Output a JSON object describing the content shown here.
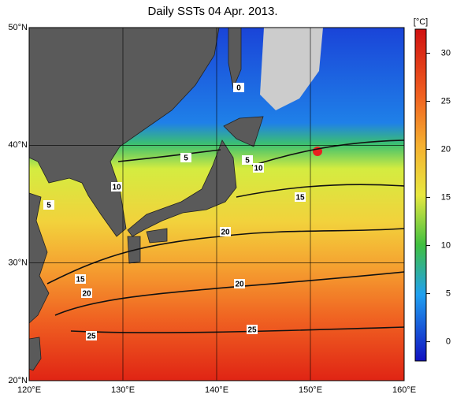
{
  "title": "Daily SSTs 04 Apr. 2013.",
  "lon_ticks": [
    {
      "value": 120,
      "label": "120°E"
    },
    {
      "value": 130,
      "label": "130°E"
    },
    {
      "value": 140,
      "label": "140°E"
    },
    {
      "value": 150,
      "label": "150°E"
    },
    {
      "value": 160,
      "label": "160°E"
    }
  ],
  "lat_ticks": [
    {
      "value": 20,
      "label": "20°N"
    },
    {
      "value": 30,
      "label": "30°N"
    },
    {
      "value": 40,
      "label": "40°N"
    },
    {
      "value": 50,
      "label": "50°N"
    }
  ],
  "colorbar": {
    "unit": "[°C]",
    "lim": [
      -2,
      32.5
    ],
    "ticks": [
      0,
      5,
      10,
      15,
      20,
      25,
      30
    ]
  },
  "contour_labels": [
    "0",
    "5",
    "5",
    "5",
    "10",
    "10",
    "15",
    "15",
    "20",
    "20",
    "20",
    "25",
    "25"
  ]
}
